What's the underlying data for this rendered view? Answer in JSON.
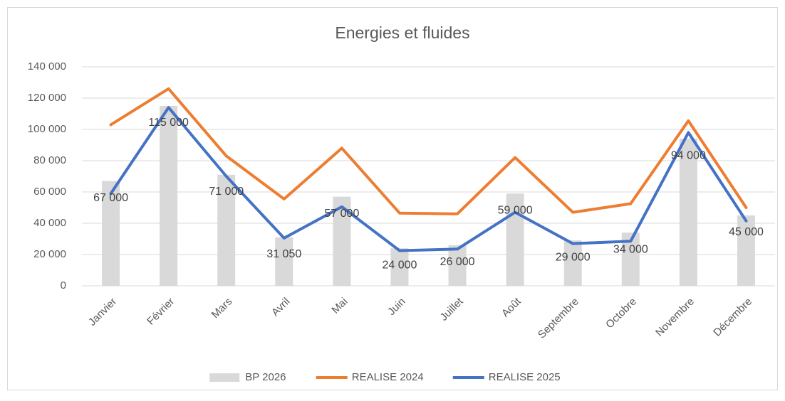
{
  "chart_data": {
    "type": "bar",
    "title": "Energies et fluides",
    "categories": [
      "Janvier",
      "Février",
      "Mars",
      "Avril",
      "Mai",
      "Juin",
      "Juillet",
      "Août",
      "Septembre",
      "Octobre",
      "Novembre",
      "Décembre"
    ],
    "series": [
      {
        "name": "BP 2026",
        "type": "bar",
        "color": "#d9d9d9",
        "values": [
          67000,
          115000,
          71000,
          31050,
          57000,
          24000,
          26000,
          59000,
          29000,
          34000,
          94000,
          45000
        ],
        "value_labels": [
          "67 000",
          "115 000",
          "71 000",
          "31 050",
          "57 000",
          "24 000",
          "26 000",
          "59 000",
          "29 000",
          "34 000",
          "94 000",
          "45 000"
        ]
      },
      {
        "name": "REALISE 2024",
        "type": "line",
        "color": "#ed7d31",
        "values": [
          103000,
          126000,
          83000,
          55500,
          88000,
          46500,
          46000,
          82000,
          47000,
          52500,
          105500,
          50000
        ]
      },
      {
        "name": "REALISE 2025",
        "type": "line",
        "color": "#4472c4",
        "values": [
          59000,
          114000,
          70000,
          30500,
          50500,
          22500,
          23500,
          47000,
          27000,
          28500,
          98000,
          41500
        ]
      }
    ],
    "ylim": [
      0,
      140000
    ],
    "yticks": [
      0,
      {
        "value": 20000,
        "label": "20 000"
      },
      {
        "value": 40000,
        "label": "40 000"
      },
      {
        "value": 60000,
        "label": "60 000"
      },
      {
        "value": 80000,
        "label": "80 000"
      },
      {
        "value": 100000,
        "label": "100 000"
      },
      {
        "value": 120000,
        "label": "120 000"
      },
      {
        "value": 140000,
        "label": "140 000"
      }
    ],
    "grid": true,
    "legend": "bottom"
  }
}
